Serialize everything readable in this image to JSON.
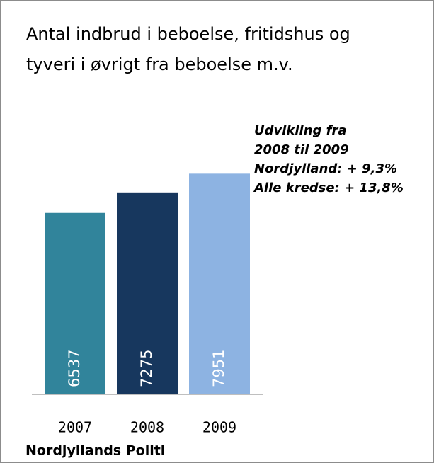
{
  "chart_data": {
    "type": "bar",
    "title": "Antal indbrud i beboelse, fritidshus og tyveri i øvrigt fra beboelse m.v.",
    "annotations": [
      "Udvikling fra",
      "2008 til 2009",
      "Nordjylland:  + 9,3%",
      "Alle kredse: + 13,8%"
    ],
    "categories": [
      "2007",
      "2008",
      "2009"
    ],
    "values": [
      6537,
      7275,
      7951
    ],
    "colors": [
      "#31849b",
      "#17375e",
      "#8db3e2"
    ],
    "ylim": [
      0,
      10000
    ],
    "footer": "Nordjyllands Politi"
  }
}
